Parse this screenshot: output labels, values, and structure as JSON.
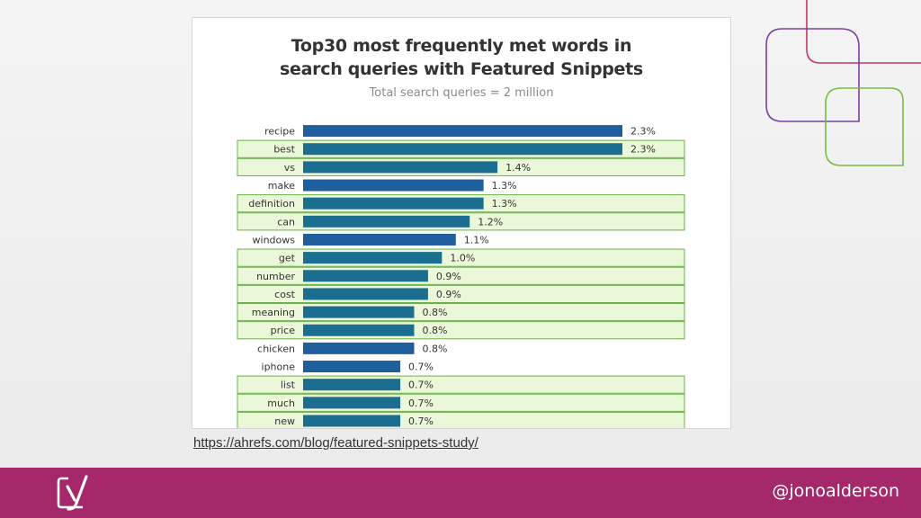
{
  "slide": {
    "source_link": "https://ahrefs.com/blog/featured-snippets-study/",
    "handle": "@jonoalderson",
    "logo_icon": "yoast-logo-icon",
    "colors": {
      "footer": "#a4286a",
      "deco_purple": "#7b3fa0",
      "deco_magenta": "#c8336f",
      "deco_green": "#77bc3f"
    }
  },
  "chart_data": {
    "type": "bar",
    "orientation": "horizontal",
    "title_line1": "Top30 most frequently met words in",
    "title_line2": "search queries with Featured Snippets",
    "subtitle": "Total search queries = 2 million",
    "xlabel": "",
    "ylabel": "",
    "xlim": [
      0,
      2.3
    ],
    "categories": [
      "recipe",
      "best",
      "vs",
      "make",
      "definition",
      "can",
      "windows",
      "get",
      "number",
      "cost",
      "meaning",
      "price",
      "chicken",
      "iphone",
      "list",
      "much",
      "new"
    ],
    "values": [
      2.3,
      2.3,
      1.4,
      1.3,
      1.3,
      1.2,
      1.1,
      1.0,
      0.9,
      0.9,
      0.8,
      0.8,
      0.8,
      0.7,
      0.7,
      0.7,
      0.7
    ],
    "value_labels": [
      "2.3%",
      "2.3%",
      "1.4%",
      "1.3%",
      "1.3%",
      "1.2%",
      "1.1%",
      "1.0%",
      "0.9%",
      "0.9%",
      "0.8%",
      "0.8%",
      "0.8%",
      "0.7%",
      "0.7%",
      "0.7%",
      "0.7%"
    ],
    "highlighted": [
      false,
      true,
      true,
      false,
      true,
      true,
      false,
      true,
      true,
      true,
      true,
      true,
      false,
      false,
      true,
      true,
      true
    ],
    "colors": {
      "bar_normal": "#1f5f9e",
      "bar_highlighted": "#1b6e8f",
      "highlight_fill": "#eaf7d8",
      "highlight_border": "#6bb04a"
    }
  }
}
